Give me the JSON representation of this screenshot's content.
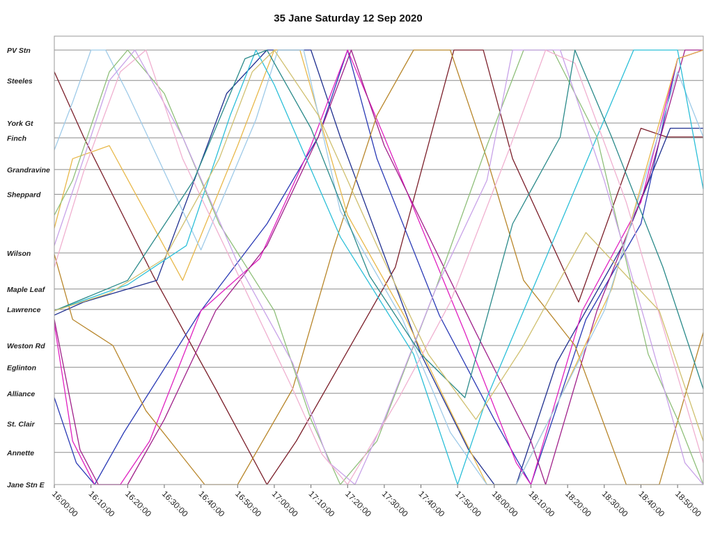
{
  "chart_data": {
    "type": "line",
    "title": "35 Jane Saturday 12 Sep 2020",
    "xlabel": "",
    "ylabel": "",
    "x_range": [
      "16:00:00",
      "18:57:00"
    ],
    "x_ticks": [
      "16:00:00",
      "16:10:00",
      "16:20:00",
      "16:30:00",
      "16:40:00",
      "16:50:00",
      "17:00:00",
      "17:10:00",
      "17:20:00",
      "17:30:00",
      "17:40:00",
      "17:50:00",
      "18:00:00",
      "18:10:00",
      "18:20:00",
      "18:30:00",
      "18:40:00",
      "18:50:00"
    ],
    "stops": [
      {
        "name": "PV Stn",
        "km": 0.0
      },
      {
        "name": "Steeles",
        "km": 0.7
      },
      {
        "name": "York Gt",
        "km": 1.68
      },
      {
        "name": "Finch",
        "km": 2.02
      },
      {
        "name": "Grandravine",
        "km": 2.75
      },
      {
        "name": "Sheppard",
        "km": 3.32
      },
      {
        "name": "Wilson",
        "km": 4.67
      },
      {
        "name": "Maple Leaf",
        "km": 5.5
      },
      {
        "name": "Lawrence",
        "km": 5.97
      },
      {
        "name": "Weston Rd",
        "km": 6.8
      },
      {
        "name": "Eglinton",
        "km": 7.3
      },
      {
        "name": "Alliance",
        "km": 7.9
      },
      {
        "name": "St. Clair",
        "km": 8.6
      },
      {
        "name": "Annette",
        "km": 9.26
      },
      {
        "name": "Jane Stn E",
        "km": 10.0
      }
    ],
    "grid": true,
    "legend": "none",
    "series": [
      {
        "color": "#7b1f2a",
        "points": [
          [
            "15:58",
            0.5
          ],
          [
            "16:08",
            2.0
          ],
          [
            "16:27",
            5.2
          ],
          [
            "16:44",
            7.8
          ],
          [
            "16:58",
            10.0
          ],
          [
            "17:06",
            9.0
          ],
          [
            "17:33",
            5.0
          ],
          [
            "17:49",
            0.0
          ],
          [
            "17:57",
            0.0
          ],
          [
            "18:05",
            2.5
          ],
          [
            "18:23",
            5.8
          ],
          [
            "18:40",
            1.8
          ],
          [
            "18:47",
            2.0
          ],
          [
            "18:57",
            2.0
          ]
        ]
      },
      {
        "color": "#1f2f8f",
        "points": [
          [
            "15:58",
            6.1
          ],
          [
            "16:08",
            5.8
          ],
          [
            "16:28",
            5.3
          ],
          [
            "16:47",
            1.0
          ],
          [
            "16:58",
            0.0
          ],
          [
            "17:04",
            0.0
          ],
          [
            "17:10",
            0.0
          ],
          [
            "17:18",
            2.0
          ],
          [
            "17:40",
            7.0
          ],
          [
            "17:53",
            9.2
          ],
          [
            "18:00",
            10.0
          ],
          [
            "18:06",
            10.0
          ],
          [
            "18:17",
            7.2
          ],
          [
            "18:35",
            4.5
          ],
          [
            "18:48",
            1.8
          ],
          [
            "18:57",
            1.8
          ]
        ]
      },
      {
        "color": "#2a3ab5",
        "points": [
          [
            "15:58",
            8.0
          ],
          [
            "16:06",
            9.5
          ],
          [
            "16:11",
            10.0
          ],
          [
            "16:19",
            8.8
          ],
          [
            "16:40",
            6.0
          ],
          [
            "16:58",
            4.0
          ],
          [
            "17:12",
            2.0
          ],
          [
            "17:20",
            0.0
          ],
          [
            "17:28",
            2.5
          ],
          [
            "17:45",
            6.1
          ],
          [
            "18:00",
            8.5
          ],
          [
            "18:10",
            10.0
          ],
          [
            "18:25",
            6.2
          ],
          [
            "18:40",
            4.0
          ],
          [
            "18:50",
            0.2
          ],
          [
            "18:57",
            0.0
          ]
        ]
      },
      {
        "color": "#e020c0",
        "points": [
          [
            "15:58",
            6.3
          ],
          [
            "16:05",
            9.0
          ],
          [
            "16:11",
            10.0
          ],
          [
            "16:18",
            10.0
          ],
          [
            "16:26",
            9.0
          ],
          [
            "16:40",
            6.0
          ],
          [
            "16:56",
            4.8
          ],
          [
            "17:10",
            2.2
          ],
          [
            "17:20",
            0.0
          ],
          [
            "17:30",
            2.0
          ],
          [
            "17:52",
            6.5
          ],
          [
            "18:06",
            9.5
          ],
          [
            "18:10",
            10.0
          ],
          [
            "18:24",
            6.0
          ],
          [
            "18:40",
            3.5
          ],
          [
            "18:50",
            0.2
          ],
          [
            "18:57",
            0.0
          ]
        ]
      },
      {
        "color": "#a0208a",
        "points": [
          [
            "15:58",
            6.2
          ],
          [
            "16:07",
            9.2
          ],
          [
            "16:12",
            10.0
          ],
          [
            "16:20",
            10.0
          ],
          [
            "16:30",
            8.5
          ],
          [
            "16:44",
            6.0
          ],
          [
            "16:58",
            4.5
          ],
          [
            "17:12",
            2.0
          ],
          [
            "17:21",
            0.0
          ],
          [
            "17:30",
            2.2
          ],
          [
            "17:55",
            6.5
          ],
          [
            "18:10",
            9.0
          ],
          [
            "18:14",
            10.0
          ],
          [
            "18:28",
            6.0
          ],
          [
            "18:42",
            3.0
          ],
          [
            "18:52",
            0.0
          ],
          [
            "18:57",
            0.0
          ]
        ]
      },
      {
        "color": "#b8862a",
        "points": [
          [
            "15:58",
            4.7
          ],
          [
            "16:05",
            6.2
          ],
          [
            "16:16",
            6.8
          ],
          [
            "16:25",
            8.3
          ],
          [
            "16:41",
            10.0
          ],
          [
            "16:50",
            10.0
          ],
          [
            "17:05",
            7.8
          ],
          [
            "17:16",
            4.6
          ],
          [
            "17:28",
            1.5
          ],
          [
            "17:38",
            0.0
          ],
          [
            "17:48",
            0.0
          ],
          [
            "17:58",
            2.5
          ],
          [
            "18:08",
            5.3
          ],
          [
            "18:22",
            6.8
          ],
          [
            "18:36",
            10.0
          ],
          [
            "18:45",
            10.0
          ],
          [
            "18:57",
            6.5
          ]
        ]
      },
      {
        "color": "#e8b84a",
        "points": [
          [
            "15:58",
            4.1
          ],
          [
            "16:05",
            2.5
          ],
          [
            "16:15",
            2.2
          ],
          [
            "16:35",
            5.3
          ],
          [
            "16:50",
            2.2
          ],
          [
            "17:00",
            0.0
          ],
          [
            "17:07",
            0.0
          ],
          [
            "17:20",
            3.8
          ],
          [
            "17:36",
            6.2
          ],
          [
            "17:48",
            8.3
          ],
          [
            "17:58",
            10.0
          ],
          [
            "18:06",
            10.0
          ],
          [
            "18:18",
            8.0
          ],
          [
            "18:32",
            5.5
          ],
          [
            "18:50",
            0.2
          ],
          [
            "18:57",
            0.0
          ]
        ]
      },
      {
        "color": "#9ecae8",
        "points": [
          [
            "15:58",
            2.3
          ],
          [
            "16:05",
            1.2
          ],
          [
            "16:10",
            0.0
          ],
          [
            "16:14",
            0.0
          ],
          [
            "16:20",
            1.0
          ],
          [
            "16:40",
            4.6
          ],
          [
            "16:55",
            1.6
          ],
          [
            "17:01",
            0.0
          ],
          [
            "17:08",
            0.0
          ],
          [
            "17:18",
            3.7
          ],
          [
            "17:35",
            6.2
          ],
          [
            "17:48",
            8.8
          ],
          [
            "17:58",
            10.0
          ],
          [
            "18:06",
            10.0
          ],
          [
            "18:18",
            8.0
          ],
          [
            "18:30",
            6.0
          ],
          [
            "18:50",
            0.5
          ],
          [
            "18:57",
            2.0
          ]
        ]
      },
      {
        "color": "#2bbfd8",
        "points": [
          [
            "15:58",
            6.0
          ],
          [
            "16:20",
            5.4
          ],
          [
            "16:36",
            4.5
          ],
          [
            "16:48",
            1.5
          ],
          [
            "16:55",
            0.0
          ],
          [
            "17:00",
            0.8
          ],
          [
            "17:18",
            4.3
          ],
          [
            "17:38",
            7.0
          ],
          [
            "17:50",
            10.0
          ],
          [
            "17:58",
            8.0
          ],
          [
            "18:12",
            5.2
          ],
          [
            "18:28",
            2.0
          ],
          [
            "18:38",
            0.0
          ],
          [
            "18:50",
            0.0
          ],
          [
            "18:57",
            3.2
          ]
        ]
      },
      {
        "color": "#8fbf7a",
        "points": [
          [
            "15:58",
            3.8
          ],
          [
            "16:05",
            3.0
          ],
          [
            "16:15",
            0.5
          ],
          [
            "16:20",
            0.0
          ],
          [
            "16:30",
            1.0
          ],
          [
            "16:45",
            4.0
          ],
          [
            "17:00",
            6.0
          ],
          [
            "17:10",
            8.5
          ],
          [
            "17:18",
            10.0
          ],
          [
            "17:28",
            9.0
          ],
          [
            "17:44",
            5.5
          ],
          [
            "17:58",
            2.2
          ],
          [
            "18:08",
            0.0
          ],
          [
            "18:16",
            0.0
          ],
          [
            "18:28",
            2.0
          ],
          [
            "18:42",
            7.0
          ],
          [
            "18:50",
            8.5
          ],
          [
            "18:57",
            10.0
          ]
        ]
      },
      {
        "color": "#c8a2e8",
        "points": [
          [
            "15:58",
            4.5
          ],
          [
            "16:08",
            2.5
          ],
          [
            "16:15",
            0.7
          ],
          [
            "16:22",
            0.0
          ],
          [
            "16:35",
            2.0
          ],
          [
            "16:50",
            4.9
          ],
          [
            "17:05",
            7.2
          ],
          [
            "17:15",
            9.5
          ],
          [
            "17:22",
            10.0
          ],
          [
            "17:30",
            8.5
          ],
          [
            "17:44",
            5.5
          ],
          [
            "17:58",
            3.0
          ],
          [
            "18:05",
            0.0
          ],
          [
            "18:18",
            0.0
          ],
          [
            "18:30",
            3.0
          ],
          [
            "18:42",
            6.5
          ],
          [
            "18:52",
            9.5
          ],
          [
            "18:57",
            10.0
          ]
        ]
      },
      {
        "color": "#f0b0d0",
        "points": [
          [
            "15:58",
            5.0
          ],
          [
            "16:08",
            2.8
          ],
          [
            "16:18",
            0.5
          ],
          [
            "16:25",
            0.0
          ],
          [
            "16:35",
            2.5
          ],
          [
            "16:52",
            5.5
          ],
          [
            "17:05",
            7.8
          ],
          [
            "17:13",
            9.3
          ],
          [
            "17:20",
            10.0
          ],
          [
            "17:34",
            8.0
          ],
          [
            "17:48",
            5.8
          ],
          [
            "18:04",
            2.3
          ],
          [
            "18:14",
            0.0
          ],
          [
            "18:22",
            0.3
          ],
          [
            "18:36",
            3.5
          ],
          [
            "18:50",
            7.5
          ],
          [
            "18:57",
            9.5
          ]
        ]
      },
      {
        "color": "#2a8a8a",
        "points": [
          [
            "15:58",
            6.0
          ],
          [
            "16:20",
            5.3
          ],
          [
            "16:38",
            3.0
          ],
          [
            "16:52",
            0.2
          ],
          [
            "16:58",
            0.0
          ],
          [
            "17:10",
            1.8
          ],
          [
            "17:26",
            5.2
          ],
          [
            "17:40",
            7.0
          ],
          [
            "17:52",
            8.0
          ],
          [
            "18:05",
            4.0
          ],
          [
            "18:18",
            2.0
          ],
          [
            "18:22",
            0.0
          ],
          [
            "18:32",
            2.0
          ],
          [
            "18:46",
            5.0
          ],
          [
            "18:57",
            7.8
          ]
        ]
      },
      {
        "color": "#d0c070",
        "points": [
          [
            "15:58",
            6.0
          ],
          [
            "16:15",
            5.6
          ],
          [
            "16:30",
            4.8
          ],
          [
            "16:45",
            2.5
          ],
          [
            "16:54",
            0.5
          ],
          [
            "17:00",
            0.0
          ],
          [
            "17:12",
            1.5
          ],
          [
            "17:28",
            4.5
          ],
          [
            "17:42",
            7.0
          ],
          [
            "17:55",
            8.5
          ],
          [
            "18:08",
            6.8
          ],
          [
            "18:25",
            4.2
          ],
          [
            "18:45",
            6.0
          ],
          [
            "18:57",
            9.0
          ]
        ]
      }
    ]
  }
}
